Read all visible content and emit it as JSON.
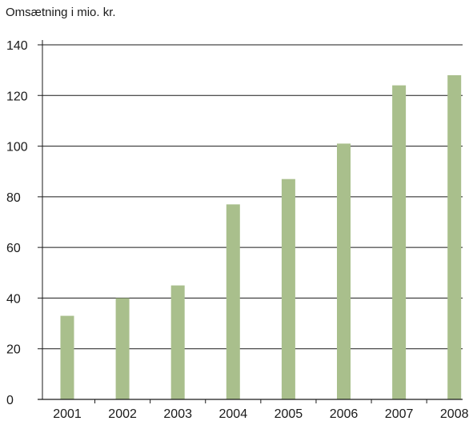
{
  "chart_data": {
    "type": "bar",
    "title": "Omsætning i mio. kr.",
    "xlabel": "",
    "ylabel": "",
    "categories": [
      "2001",
      "2002",
      "2003",
      "2004",
      "2005",
      "2006",
      "2007",
      "2008"
    ],
    "values": [
      33,
      40,
      45,
      77,
      87,
      101,
      124,
      128
    ],
    "ylim": [
      0,
      140
    ],
    "yticks": [
      0,
      20,
      40,
      60,
      80,
      100,
      120,
      140
    ],
    "grid": true,
    "legend": "none",
    "colors": {
      "bar": "#a9bf8c",
      "grid": "#1a1a1a",
      "text": "#1a1a1a"
    }
  }
}
